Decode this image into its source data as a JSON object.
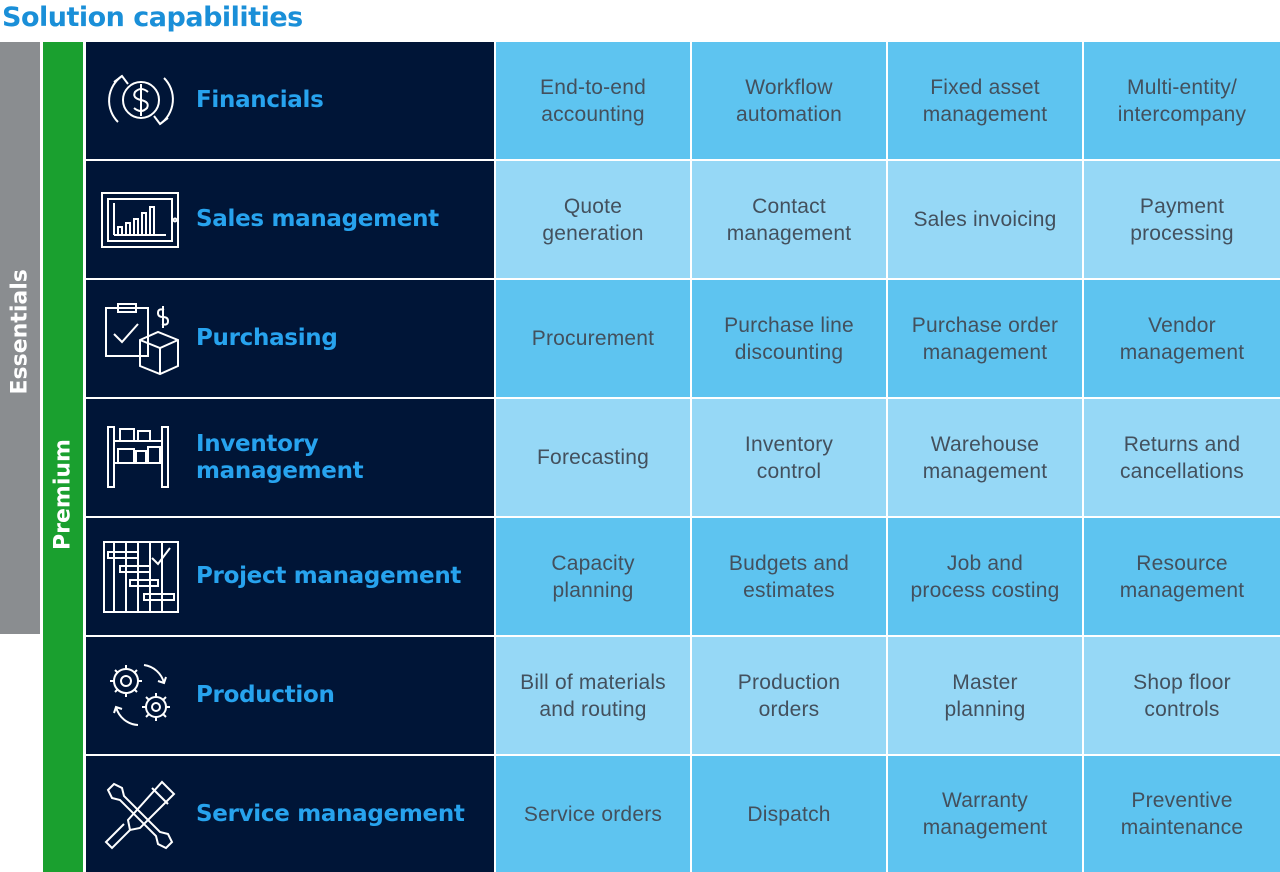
{
  "title": "Solution capabilities",
  "bands": {
    "essentials": "Essentials",
    "premium": "Premium"
  },
  "colors": {
    "title": "#1a8fd8",
    "essentials_band": "#8a8d90",
    "premium_band": "#1aa02f",
    "category_bg": "#001537",
    "category_text": "#27a3ee",
    "cell_dark": "#5ec4f0",
    "cell_light": "#96d8f6",
    "cell_text": "#43505d"
  },
  "rows": [
    {
      "category": "Financials",
      "icon": "dollar-cycle-icon",
      "capabilities": [
        "End-to-end\naccounting",
        "Workflow\nautomation",
        "Fixed asset\nmanagement",
        "Multi-entity/\nintercompany"
      ]
    },
    {
      "category": "Sales management",
      "icon": "bar-chart-tablet-icon",
      "capabilities": [
        "Quote\ngeneration",
        "Contact\nmanagement",
        "Sales invoicing",
        "Payment\nprocessing"
      ]
    },
    {
      "category": "Purchasing",
      "icon": "clipboard-box-icon",
      "capabilities": [
        "Procurement",
        "Purchase line\ndiscounting",
        "Purchase order\nmanagement",
        "Vendor\nmanagement"
      ]
    },
    {
      "category": "Inventory\nmanagement",
      "icon": "shelving-icon",
      "capabilities": [
        "Forecasting",
        "Inventory\ncontrol",
        "Warehouse\nmanagement",
        "Returns and\ncancellations"
      ]
    },
    {
      "category": "Project management",
      "icon": "gantt-checklist-icon",
      "capabilities": [
        "Capacity\nplanning",
        "Budgets and\nestimates",
        "Job and\nprocess costing",
        "Resource\nmanagement"
      ]
    },
    {
      "category": "Production",
      "icon": "gears-cycle-icon",
      "capabilities": [
        "Bill of materials\nand routing",
        "Production\norders",
        "Master\nplanning",
        "Shop floor\ncontrols"
      ]
    },
    {
      "category": "Service management",
      "icon": "wrench-screwdriver-icon",
      "capabilities": [
        "Service orders",
        "Dispatch",
        "Warranty\nmanagement",
        "Preventive\nmaintenance"
      ]
    }
  ]
}
